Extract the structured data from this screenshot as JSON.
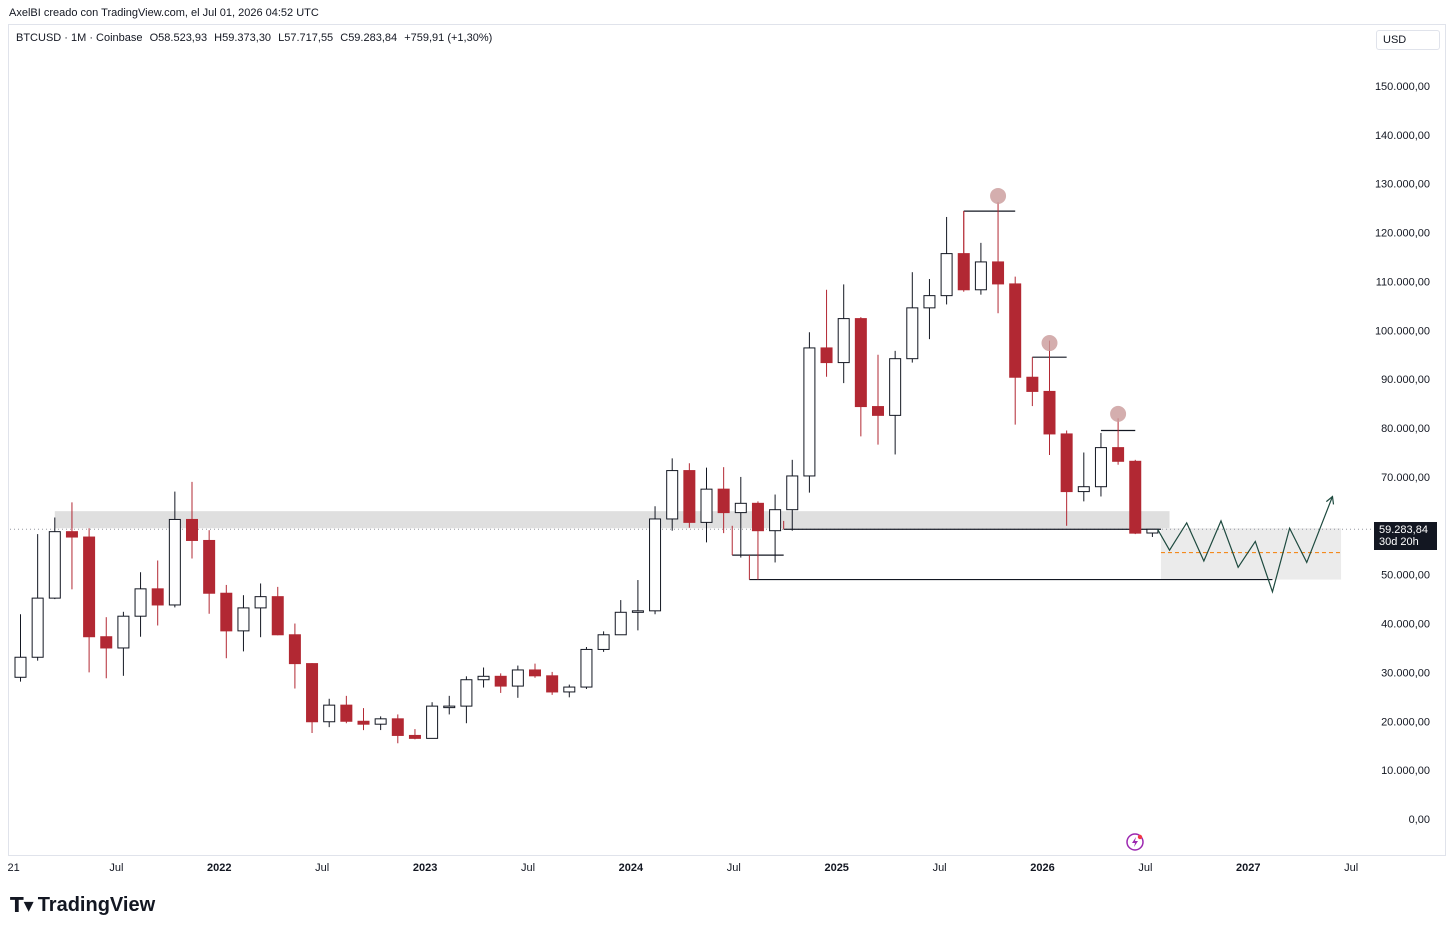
{
  "header": {
    "caption": "AxelBI creado con TradingView.com, el Jul 01, 2026 04:52 UTC"
  },
  "legend": {
    "symbol": "BTCUSD · 1M · Coinbase",
    "open": "O58.523,93",
    "high": "H59.373,30",
    "low": "L57.717,55",
    "close": "C59.283,84",
    "change": "+759,91 (+1,30%)"
  },
  "currency_button": "USD",
  "price_label": {
    "price": "59.283,84",
    "countdown": "30d 20h"
  },
  "footer": {
    "brand": "TradingView"
  },
  "colors": {
    "up_fill": "#ffffff",
    "up_stroke": "#131722",
    "down_fill": "#b22833",
    "down_wick": "#b22833",
    "zone": "#d9d9d9",
    "marker": "#c99a9a",
    "projection": "#1e4a3f",
    "target_line": "#f57c00"
  },
  "chart_data": {
    "type": "candlestick",
    "symbol": "BTCUSD",
    "interval": "1M",
    "exchange": "Coinbase",
    "ylim": [
      0,
      150000
    ],
    "y_ticks": [
      {
        "v": 0,
        "label": "0,00"
      },
      {
        "v": 10000,
        "label": "10.000,00"
      },
      {
        "v": 20000,
        "label": "20.000,00"
      },
      {
        "v": 30000,
        "label": "30.000,00"
      },
      {
        "v": 40000,
        "label": "40.000,00"
      },
      {
        "v": 50000,
        "label": "50.000,00"
      },
      {
        "v": 60000,
        "label": ""
      },
      {
        "v": 70000,
        "label": "70.000,00"
      },
      {
        "v": 80000,
        "label": "80.000,00"
      },
      {
        "v": 90000,
        "label": "90.000,00"
      },
      {
        "v": 100000,
        "label": "100.000,00"
      },
      {
        "v": 110000,
        "label": "110.000,00"
      },
      {
        "v": 120000,
        "label": "120.000,00"
      },
      {
        "v": 130000,
        "label": "130.000,00"
      },
      {
        "v": 140000,
        "label": "140.000,00"
      },
      {
        "v": 150000,
        "label": "150.000,00"
      }
    ],
    "x_ticks": [
      {
        "i": 0,
        "label": "21",
        "bold": false
      },
      {
        "i": 6,
        "label": "Jul",
        "bold": false
      },
      {
        "i": 12,
        "label": "2022",
        "bold": true
      },
      {
        "i": 18,
        "label": "Jul",
        "bold": false
      },
      {
        "i": 24,
        "label": "2023",
        "bold": true
      },
      {
        "i": 30,
        "label": "Jul",
        "bold": false
      },
      {
        "i": 36,
        "label": "2024",
        "bold": true
      },
      {
        "i": 42,
        "label": "Jul",
        "bold": false
      },
      {
        "i": 48,
        "label": "2025",
        "bold": true
      },
      {
        "i": 54,
        "label": "Jul",
        "bold": false
      },
      {
        "i": 60,
        "label": "2026",
        "bold": true
      },
      {
        "i": 66,
        "label": "Jul",
        "bold": false
      },
      {
        "i": 72,
        "label": "2027",
        "bold": true
      },
      {
        "i": 78,
        "label": "Jul",
        "bold": false
      }
    ],
    "candles": [
      {
        "t": "2021-01",
        "o": 29000,
        "h": 41900,
        "l": 28100,
        "c": 33100
      },
      {
        "t": "2021-02",
        "o": 33100,
        "h": 58300,
        "l": 32400,
        "c": 45200
      },
      {
        "t": "2021-03",
        "o": 45200,
        "h": 61700,
        "l": 45000,
        "c": 58800
      },
      {
        "t": "2021-04",
        "o": 58800,
        "h": 64800,
        "l": 47000,
        "c": 57700
      },
      {
        "t": "2021-05",
        "o": 57700,
        "h": 59500,
        "l": 30000,
        "c": 37300
      },
      {
        "t": "2021-06",
        "o": 37300,
        "h": 41300,
        "l": 28800,
        "c": 35000
      },
      {
        "t": "2021-07",
        "o": 35000,
        "h": 42400,
        "l": 29300,
        "c": 41500
      },
      {
        "t": "2021-08",
        "o": 41500,
        "h": 50500,
        "l": 37300,
        "c": 47100
      },
      {
        "t": "2021-09",
        "o": 47100,
        "h": 52900,
        "l": 39600,
        "c": 43800
      },
      {
        "t": "2021-10",
        "o": 43800,
        "h": 67000,
        "l": 43300,
        "c": 61300
      },
      {
        "t": "2021-11",
        "o": 61300,
        "h": 69000,
        "l": 53300,
        "c": 57000
      },
      {
        "t": "2021-12",
        "o": 57000,
        "h": 59100,
        "l": 42000,
        "c": 46200
      },
      {
        "t": "2022-01",
        "o": 46200,
        "h": 47900,
        "l": 32900,
        "c": 38500
      },
      {
        "t": "2022-02",
        "o": 38500,
        "h": 45800,
        "l": 34300,
        "c": 43200
      },
      {
        "t": "2022-03",
        "o": 43200,
        "h": 48200,
        "l": 37200,
        "c": 45500
      },
      {
        "t": "2022-04",
        "o": 45500,
        "h": 47500,
        "l": 37600,
        "c": 37700
      },
      {
        "t": "2022-05",
        "o": 37700,
        "h": 40000,
        "l": 26700,
        "c": 31800
      },
      {
        "t": "2022-06",
        "o": 31800,
        "h": 31900,
        "l": 17600,
        "c": 19900
      },
      {
        "t": "2022-07",
        "o": 19900,
        "h": 24600,
        "l": 18800,
        "c": 23300
      },
      {
        "t": "2022-08",
        "o": 23300,
        "h": 25200,
        "l": 19600,
        "c": 20000
      },
      {
        "t": "2022-09",
        "o": 20000,
        "h": 22700,
        "l": 18200,
        "c": 19400
      },
      {
        "t": "2022-10",
        "o": 19400,
        "h": 21000,
        "l": 18200,
        "c": 20500
      },
      {
        "t": "2022-11",
        "o": 20500,
        "h": 21400,
        "l": 15500,
        "c": 17100
      },
      {
        "t": "2022-12",
        "o": 17100,
        "h": 18400,
        "l": 16300,
        "c": 16500
      },
      {
        "t": "2023-01",
        "o": 16500,
        "h": 23900,
        "l": 16500,
        "c": 23100
      },
      {
        "t": "2023-02",
        "o": 23100,
        "h": 25200,
        "l": 21400,
        "c": 23100
      },
      {
        "t": "2023-03",
        "o": 23100,
        "h": 29200,
        "l": 19600,
        "c": 28500
      },
      {
        "t": "2023-04",
        "o": 28500,
        "h": 31000,
        "l": 26900,
        "c": 29200
      },
      {
        "t": "2023-05",
        "o": 29200,
        "h": 29800,
        "l": 25800,
        "c": 27200
      },
      {
        "t": "2023-06",
        "o": 27200,
        "h": 31400,
        "l": 24800,
        "c": 30500
      },
      {
        "t": "2023-07",
        "o": 30500,
        "h": 31800,
        "l": 28900,
        "c": 29300
      },
      {
        "t": "2023-08",
        "o": 29300,
        "h": 30100,
        "l": 25400,
        "c": 26000
      },
      {
        "t": "2023-09",
        "o": 26000,
        "h": 27500,
        "l": 24900,
        "c": 27000
      },
      {
        "t": "2023-10",
        "o": 27000,
        "h": 35200,
        "l": 26600,
        "c": 34700
      },
      {
        "t": "2023-11",
        "o": 34700,
        "h": 38400,
        "l": 34200,
        "c": 37700
      },
      {
        "t": "2023-12",
        "o": 37700,
        "h": 44800,
        "l": 37700,
        "c": 42300
      },
      {
        "t": "2024-01",
        "o": 42300,
        "h": 48900,
        "l": 38600,
        "c": 42600
      },
      {
        "t": "2024-02",
        "o": 42600,
        "h": 64000,
        "l": 41900,
        "c": 61400
      },
      {
        "t": "2024-03",
        "o": 61400,
        "h": 73800,
        "l": 59000,
        "c": 71300
      },
      {
        "t": "2024-04",
        "o": 71300,
        "h": 72800,
        "l": 59600,
        "c": 60700
      },
      {
        "t": "2024-05",
        "o": 60700,
        "h": 71900,
        "l": 56600,
        "c": 67500
      },
      {
        "t": "2024-06",
        "o": 67500,
        "h": 72000,
        "l": 58500,
        "c": 62700
      },
      {
        "t": "2024-07",
        "o": 62700,
        "h": 70000,
        "l": 53500,
        "c": 64600
      },
      {
        "t": "2024-08",
        "o": 64600,
        "h": 65000,
        "l": 49000,
        "c": 59000
      },
      {
        "t": "2024-09",
        "o": 59000,
        "h": 66400,
        "l": 52500,
        "c": 63300
      },
      {
        "t": "2024-10",
        "o": 63300,
        "h": 73500,
        "l": 59000,
        "c": 70200
      },
      {
        "t": "2024-11",
        "o": 70200,
        "h": 99600,
        "l": 66800,
        "c": 96400
      },
      {
        "t": "2024-12",
        "o": 96400,
        "h": 108300,
        "l": 90500,
        "c": 93400
      },
      {
        "t": "2025-01",
        "o": 93400,
        "h": 109400,
        "l": 89200,
        "c": 102400
      },
      {
        "t": "2025-02",
        "o": 102400,
        "h": 102700,
        "l": 78300,
        "c": 84400
      },
      {
        "t": "2025-03",
        "o": 84400,
        "h": 95000,
        "l": 76600,
        "c": 82600
      },
      {
        "t": "2025-04",
        "o": 82600,
        "h": 95800,
        "l": 74600,
        "c": 94200
      },
      {
        "t": "2025-05",
        "o": 94200,
        "h": 111900,
        "l": 93400,
        "c": 104600
      },
      {
        "t": "2025-06",
        "o": 104600,
        "h": 110500,
        "l": 98200,
        "c": 107100
      },
      {
        "t": "2025-07",
        "o": 107100,
        "h": 123200,
        "l": 105300,
        "c": 115700
      },
      {
        "t": "2025-08",
        "o": 115700,
        "h": 124400,
        "l": 107900,
        "c": 108300
      },
      {
        "t": "2025-09",
        "o": 108300,
        "h": 117900,
        "l": 107300,
        "c": 114000
      },
      {
        "t": "2025-10",
        "o": 114000,
        "h": 126200,
        "l": 103500,
        "c": 109500
      },
      {
        "t": "2025-11",
        "o": 109500,
        "h": 111000,
        "l": 80700,
        "c": 90400
      },
      {
        "t": "2025-12",
        "o": 90400,
        "h": 94500,
        "l": 84500,
        "c": 87500
      },
      {
        "t": "2026-01",
        "o": 87500,
        "h": 97900,
        "l": 74500,
        "c": 78800
      },
      {
        "t": "2026-02",
        "o": 78800,
        "h": 79500,
        "l": 60000,
        "c": 67000
      },
      {
        "t": "2026-03",
        "o": 67000,
        "h": 75000,
        "l": 65000,
        "c": 68000
      },
      {
        "t": "2026-04",
        "o": 68000,
        "h": 79000,
        "l": 66000,
        "c": 76000
      },
      {
        "t": "2026-05",
        "o": 76000,
        "h": 82000,
        "l": 72500,
        "c": 73200
      },
      {
        "t": "2026-06",
        "o": 73200,
        "h": 73500,
        "l": 58300,
        "c": 58500
      },
      {
        "t": "2026-07",
        "o": 58523.93,
        "h": 59373.3,
        "l": 57717.55,
        "c": 59283.84
      }
    ],
    "support_zone": {
      "y_low": 59500,
      "y_high": 63000,
      "from_i": 2,
      "to_i": 67
    },
    "target_zone": {
      "y_low": 49000,
      "y_high": 59500,
      "from_i": 66.5,
      "to_i": 77
    },
    "target_line": {
      "y": 54500,
      "from_i": 66.5,
      "to_i": 77
    },
    "horizontal_lines": [
      {
        "y": 59300,
        "from_i": 44.5,
        "to_i": 66.5
      },
      {
        "y": 54000,
        "from_i": 41.5,
        "to_i": 44.5
      },
      {
        "y": 49000,
        "from_i": 42.5,
        "to_i": 73
      },
      {
        "y": 124400,
        "from_i": 55,
        "to_i": 58
      },
      {
        "y": 94500,
        "from_i": 59,
        "to_i": 61
      },
      {
        "y": 79500,
        "from_i": 63,
        "to_i": 65
      }
    ],
    "vertical_ticks": [
      {
        "x_i": 41.5,
        "y_low": 54000,
        "y_high": 60000
      },
      {
        "x_i": 42.5,
        "y_low": 49000,
        "y_high": 54000
      },
      {
        "x_i": 44.5,
        "y_low": 59300,
        "y_high": 61000
      },
      {
        "x_i": 55,
        "y_low": 110000,
        "y_high": 124400
      }
    ],
    "top_markers": [
      {
        "i": 57,
        "y": 127500
      },
      {
        "i": 60,
        "y": 97400
      },
      {
        "i": 64,
        "y": 82900
      }
    ],
    "projection_path": [
      [
        66.3,
        59300
      ],
      [
        67.0,
        55000
      ],
      [
        68.0,
        60600
      ],
      [
        69.0,
        52800
      ],
      [
        70.0,
        61000
      ],
      [
        71.0,
        51500
      ],
      [
        72.0,
        56800
      ],
      [
        73.0,
        46500
      ],
      [
        74.0,
        59500
      ],
      [
        75.0,
        52500
      ],
      [
        76.5,
        66000
      ]
    ],
    "current_price": 59283.84
  }
}
